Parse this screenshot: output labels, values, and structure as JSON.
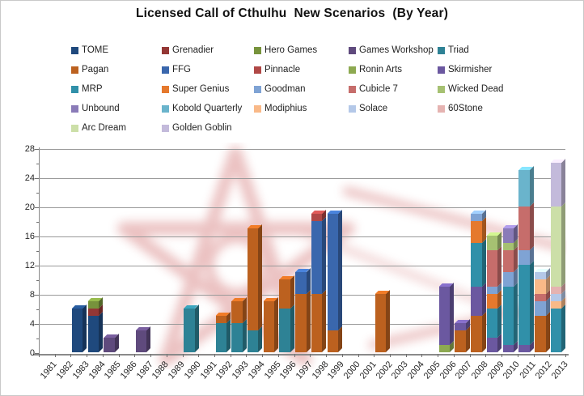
{
  "title": "Licensed Call of Cthulhu  New Scenarios  (By Year)",
  "chart_data": {
    "type": "bar",
    "stacked": true,
    "title": "Licensed Call of Cthulhu  New Scenarios  (By Year)",
    "xlabel": "",
    "ylabel": "",
    "ylim": [
      0,
      28
    ],
    "yticks": [
      0,
      4,
      8,
      12,
      16,
      20,
      24,
      28
    ],
    "grid": true,
    "legend_position": "top",
    "background_watermark": "elder-sign-pink",
    "categories": [
      "1981",
      "1982",
      "1983",
      "1984",
      "1985",
      "1986",
      "1987",
      "1988",
      "1989",
      "1990",
      "1991",
      "1992",
      "1993",
      "1994",
      "1995",
      "1996",
      "1997",
      "1998",
      "1999",
      "2000",
      "2001",
      "2002",
      "2003",
      "2004",
      "2005",
      "2006",
      "2007",
      "2008",
      "2009",
      "2010",
      "2011",
      "2012",
      "2013"
    ],
    "series": [
      {
        "name": "TOME",
        "color": "#1F497D"
      },
      {
        "name": "Grenadier",
        "color": "#943735"
      },
      {
        "name": "Hero Games",
        "color": "#77933C"
      },
      {
        "name": "Games Workshop",
        "color": "#5F4A7D"
      },
      {
        "name": "Triad",
        "color": "#2E8295"
      },
      {
        "name": "Pagan",
        "color": "#BC611F"
      },
      {
        "name": "FFG",
        "color": "#3A67AD"
      },
      {
        "name": "Pinnacle",
        "color": "#B04846"
      },
      {
        "name": "Ronin Arts",
        "color": "#8DA951"
      },
      {
        "name": "Skirmisher",
        "color": "#6B58A0"
      },
      {
        "name": "MRP",
        "color": "#3090A9"
      },
      {
        "name": "Super Genius",
        "color": "#E5792D"
      },
      {
        "name": "Goodman",
        "color": "#7FA3D4"
      },
      {
        "name": "Cubicle 7",
        "color": "#C66D6B"
      },
      {
        "name": "Wicked Dead",
        "color": "#A6C172"
      },
      {
        "name": "Unbound",
        "color": "#8A7BB8"
      },
      {
        "name": "Kobold Quarterly",
        "color": "#6AB4CC"
      },
      {
        "name": "Modiphius",
        "color": "#F9B988"
      },
      {
        "name": "Solace",
        "color": "#B4C8E8"
      },
      {
        "name": "60Stone",
        "color": "#E5B3B1"
      },
      {
        "name": "Arc Dream",
        "color": "#CCDFA8"
      },
      {
        "name": "Golden Goblin",
        "color": "#C3BADB"
      }
    ],
    "stacks": {
      "1983": [
        [
          "TOME",
          6
        ]
      ],
      "1984": [
        [
          "TOME",
          5
        ],
        [
          "Grenadier",
          1
        ],
        [
          "Hero Games",
          1
        ]
      ],
      "1985": [
        [
          "Games Workshop",
          2
        ]
      ],
      "1987": [
        [
          "Games Workshop",
          3
        ]
      ],
      "1990": [
        [
          "Triad",
          6
        ]
      ],
      "1992": [
        [
          "Triad",
          4
        ],
        [
          "Pagan",
          1
        ]
      ],
      "1993": [
        [
          "Triad",
          4
        ],
        [
          "Pagan",
          3
        ]
      ],
      "1994": [
        [
          "Triad",
          3
        ],
        [
          "Pagan",
          14
        ]
      ],
      "1995": [
        [
          "Pagan",
          7
        ]
      ],
      "1996": [
        [
          "Triad",
          6
        ],
        [
          "Pagan",
          4
        ]
      ],
      "1997": [
        [
          "Pagan",
          8
        ],
        [
          "FFG",
          3
        ]
      ],
      "1998": [
        [
          "Pagan",
          8
        ],
        [
          "FFG",
          10
        ],
        [
          "Pinnacle",
          1
        ]
      ],
      "1999": [
        [
          "Pagan",
          3
        ],
        [
          "FFG",
          16
        ]
      ],
      "2002": [
        [
          "Pagan",
          8
        ]
      ],
      "2006": [
        [
          "Ronin Arts",
          1
        ],
        [
          "Skirmisher",
          8
        ]
      ],
      "2007": [
        [
          "Pagan",
          3
        ],
        [
          "Skirmisher",
          1
        ]
      ],
      "2008": [
        [
          "Pagan",
          5
        ],
        [
          "Skirmisher",
          4
        ],
        [
          "MRP",
          6
        ],
        [
          "Super Genius",
          3
        ],
        [
          "Goodman",
          1
        ]
      ],
      "2009": [
        [
          "Skirmisher",
          2
        ],
        [
          "MRP",
          4
        ],
        [
          "Super Genius",
          2
        ],
        [
          "Goodman",
          1
        ],
        [
          "Cubicle 7",
          5
        ],
        [
          "Wicked Dead",
          2
        ]
      ],
      "2010": [
        [
          "Skirmisher",
          1
        ],
        [
          "MRP",
          8
        ],
        [
          "Goodman",
          2
        ],
        [
          "Cubicle 7",
          3
        ],
        [
          "Wicked Dead",
          1
        ],
        [
          "Unbound",
          2
        ]
      ],
      "2011": [
        [
          "Skirmisher",
          1
        ],
        [
          "MRP",
          11
        ],
        [
          "Goodman",
          2
        ],
        [
          "Cubicle 7",
          6
        ],
        [
          "Kobold Quarterly",
          5
        ]
      ],
      "2012": [
        [
          "Pagan",
          5
        ],
        [
          "Goodman",
          2
        ],
        [
          "Cubicle 7",
          1
        ],
        [
          "Modiphius",
          2
        ],
        [
          "Solace",
          1
        ]
      ],
      "2013": [
        [
          "MRP",
          6
        ],
        [
          "Modiphius",
          1
        ],
        [
          "Solace",
          1
        ],
        [
          "60Stone",
          1
        ],
        [
          "Arc Dream",
          11
        ],
        [
          "Golden Goblin",
          6
        ]
      ]
    }
  }
}
